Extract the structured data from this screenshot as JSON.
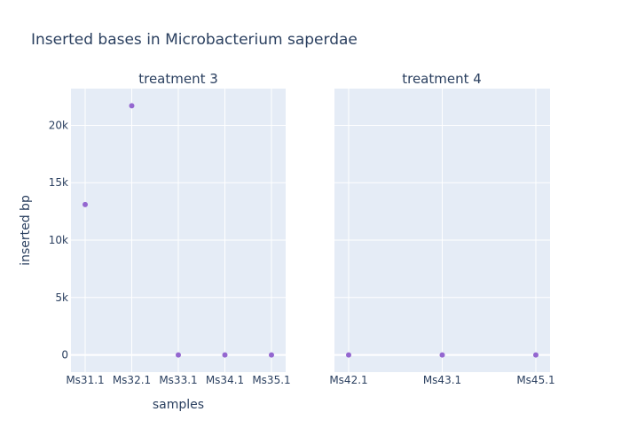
{
  "chart_data": {
    "type": "scatter",
    "title": "Inserted bases in Microbacterium saperdae",
    "ylabel": "inserted bp",
    "xlabel": "samples",
    "ylim": [
      -1500,
      23200
    ],
    "yticks": [
      0,
      5000,
      10000,
      15000,
      20000
    ],
    "ytick_labels": [
      "0",
      "5k",
      "10k",
      "15k",
      "20k"
    ],
    "grid": true,
    "marker_color": "#9467d0",
    "plot_bg": "#e5ecf6",
    "panels": [
      {
        "title": "treatment 3",
        "categories": [
          "Ms31.1",
          "Ms32.1",
          "Ms33.1",
          "Ms34.1",
          "Ms35.1"
        ],
        "values": [
          13100,
          21700,
          0,
          0,
          0
        ]
      },
      {
        "title": "treatment 4",
        "categories": [
          "Ms42.1",
          "Ms43.1",
          "Ms45.1"
        ],
        "values": [
          0,
          0,
          0
        ]
      }
    ]
  }
}
